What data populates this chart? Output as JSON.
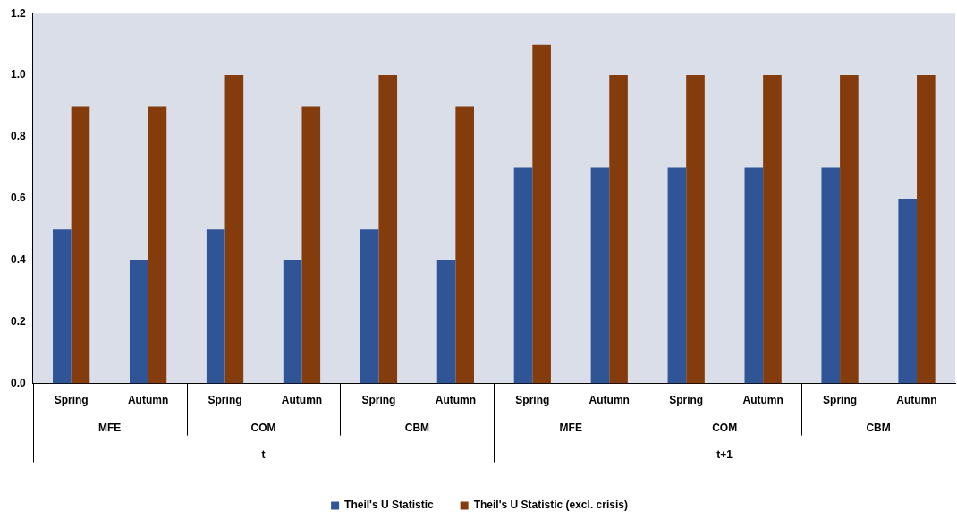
{
  "chart_data": {
    "type": "bar",
    "categories": [
      "Spring",
      "Autumn",
      "Spring",
      "Autumn",
      "Spring",
      "Autumn",
      "Spring",
      "Autumn",
      "Spring",
      "Autumn",
      "Spring",
      "Autumn"
    ],
    "series": [
      {
        "name": "Theil's U Statistic",
        "color": "#2f5597",
        "values": [
          0.5,
          0.4,
          0.5,
          0.4,
          0.5,
          0.4,
          0.7,
          0.7,
          0.7,
          0.7,
          0.7,
          0.6
        ]
      },
      {
        "name": "Theil's U Statistic (excl. crisis)",
        "color": "#843c0c",
        "values": [
          0.9,
          0.9,
          1.0,
          0.9,
          1.0,
          0.9,
          1.1,
          1.0,
          1.0,
          1.0,
          1.0,
          1.0
        ]
      }
    ],
    "annotations": [
      "MFE",
      "COM",
      "CBM",
      "MFE",
      "COM",
      "CBM",
      "t",
      "t+1"
    ],
    "ylim": [
      0,
      1.2
    ],
    "yticks": [
      {
        "value": 0,
        "label": "0.0"
      },
      0.2,
      0.4,
      0.6,
      0.8,
      {
        "value": 1,
        "label": "1.0"
      },
      {
        "value": 1.2,
        "label": "1.2"
      }
    ],
    "grid": false,
    "legend": "bottom"
  }
}
